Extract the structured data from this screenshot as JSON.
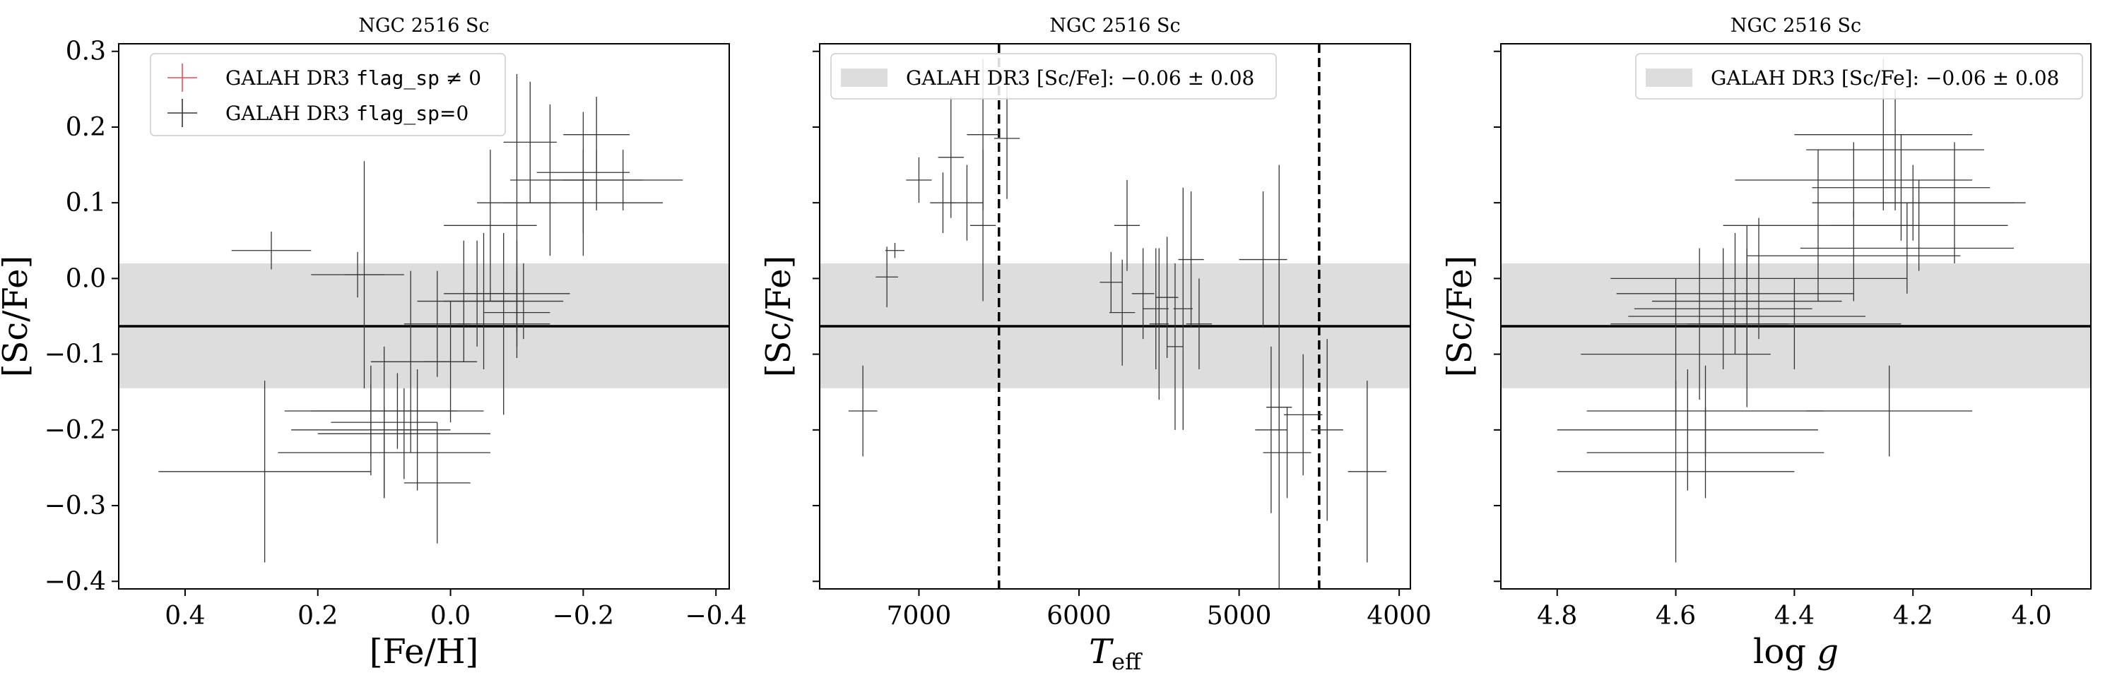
{
  "chart_data": [
    {
      "type": "scatter",
      "title": "NGC 2516 Sc",
      "xlabel": "[Fe/H]",
      "ylabel": "[Sc/Fe]",
      "xlim": [
        0.5,
        -0.42
      ],
      "ylim": [
        -0.41,
        0.31
      ],
      "xticks": [
        0.4,
        0.2,
        0.0,
        -0.2,
        -0.4
      ],
      "xtick_labels": [
        "0.4",
        "0.2",
        "0.0",
        "−0.2",
        "−0.4"
      ],
      "yticks": [
        0.3,
        0.2,
        0.1,
        0.0,
        -0.1,
        -0.2,
        -0.3,
        -0.4
      ],
      "ytick_labels": [
        "0.3",
        "0.2",
        "0.1",
        "0.0",
        "−0.1",
        "−0.2",
        "−0.3",
        "−0.4"
      ],
      "show_ytick_labels": true,
      "reference": {
        "value": -0.063,
        "band": [
          -0.145,
          0.02
        ]
      },
      "vlines": [],
      "legend": {
        "placement": "upper-left",
        "entries": [
          {
            "pre": "GALAH DR3 ",
            "code": "flag_sp",
            "post": " ≠ 0",
            "color": "#e0525e"
          },
          {
            "pre": "GALAH DR3 ",
            "code": "flag_sp",
            "post": "=0",
            "color": "#333333"
          }
        ]
      },
      "series": [
        {
          "name": "GALAH DR3 flag_sp=0",
          "color": "#333333",
          "points": [
            {
              "x": 0.27,
              "y": 0.037,
              "xerr": 0.06,
              "yerr": 0.025
            },
            {
              "x": 0.14,
              "y": 0.005,
              "xerr": 0.07,
              "yerr": 0.03
            },
            {
              "x": 0.13,
              "y": 0.005,
              "xerr": 0.03,
              "yerr": 0.15
            },
            {
              "x": 0.28,
              "y": -0.255,
              "xerr": 0.16,
              "yerr": 0.12
            },
            {
              "x": 0.12,
              "y": -0.2,
              "xerr": 0.12,
              "yerr": 0.06
            },
            {
              "x": 0.12,
              "y": -0.175,
              "xerr": 0.13,
              "yerr": 0.06
            },
            {
              "x": 0.08,
              "y": -0.175,
              "xerr": 0.13,
              "yerr": 0.05
            },
            {
              "x": 0.1,
              "y": -0.23,
              "xerr": 0.16,
              "yerr": 0.06
            },
            {
              "x": 0.07,
              "y": -0.205,
              "xerr": 0.13,
              "yerr": 0.06
            },
            {
              "x": 0.1,
              "y": -0.19,
              "xerr": 0.08,
              "yerr": 0.1
            },
            {
              "x": 0.06,
              "y": -0.11,
              "xerr": 0.06,
              "yerr": 0.12
            },
            {
              "x": 0.05,
              "y": -0.2,
              "xerr": 0.03,
              "yerr": 0.08
            },
            {
              "x": 0.02,
              "y": -0.06,
              "xerr": 0.05,
              "yerr": 0.07
            },
            {
              "x": 0.0,
              "y": -0.11,
              "xerr": 0.04,
              "yerr": 0.08
            },
            {
              "x": 0.02,
              "y": -0.27,
              "xerr": 0.05,
              "yerr": 0.08
            },
            {
              "x": -0.02,
              "y": -0.03,
              "xerr": 0.07,
              "yerr": 0.08
            },
            {
              "x": -0.04,
              "y": -0.02,
              "xerr": 0.05,
              "yerr": 0.07
            },
            {
              "x": -0.06,
              "y": 0.07,
              "xerr": 0.07,
              "yerr": 0.1
            },
            {
              "x": -0.05,
              "y": -0.03,
              "xerr": 0.06,
              "yerr": 0.09
            },
            {
              "x": -0.08,
              "y": -0.06,
              "xerr": 0.07,
              "yerr": 0.12
            },
            {
              "x": -0.1,
              "y": -0.045,
              "xerr": 0.05,
              "yerr": 0.06
            },
            {
              "x": -0.1,
              "y": -0.02,
              "xerr": 0.08,
              "yerr": 0.07
            },
            {
              "x": -0.11,
              "y": -0.03,
              "xerr": 0.06,
              "yerr": 0.05
            },
            {
              "x": -0.1,
              "y": 0.1,
              "xerr": 0.06,
              "yerr": 0.17
            },
            {
              "x": -0.12,
              "y": 0.18,
              "xerr": 0.04,
              "yerr": 0.08
            },
            {
              "x": -0.15,
              "y": 0.13,
              "xerr": 0.06,
              "yerr": 0.1
            },
            {
              "x": -0.2,
              "y": 0.14,
              "xerr": 0.07,
              "yerr": 0.08
            },
            {
              "x": -0.2,
              "y": 0.1,
              "xerr": 0.12,
              "yerr": 0.07
            },
            {
              "x": -0.22,
              "y": 0.19,
              "xerr": 0.05,
              "yerr": 0.05
            },
            {
              "x": -0.22,
              "y": 0.13,
              "xerr": 0.07,
              "yerr": 0.04
            },
            {
              "x": -0.26,
              "y": 0.13,
              "xerr": 0.09,
              "yerr": 0.04
            }
          ]
        }
      ]
    },
    {
      "type": "scatter",
      "title": "NGC 2516 Sc",
      "xlabel": "T_eff",
      "ylabel": "[Sc/Fe]",
      "xlim": [
        7620,
        3930
      ],
      "ylim": [
        -0.41,
        0.31
      ],
      "xticks": [
        7000,
        6000,
        5000,
        4000
      ],
      "xtick_labels": [
        "7000",
        "6000",
        "5000",
        "4000"
      ],
      "yticks": [
        0.3,
        0.2,
        0.1,
        0.0,
        -0.1,
        -0.2,
        -0.3,
        -0.4
      ],
      "ytick_labels": [
        "0.3",
        "0.2",
        "0.1",
        "0.0",
        "−0.1",
        "−0.2",
        "−0.3",
        "−0.4"
      ],
      "show_ytick_labels": false,
      "reference": {
        "value": -0.063,
        "band": [
          -0.145,
          0.02
        ]
      },
      "vlines": [
        6500,
        4500
      ],
      "legend": {
        "placement": "upper-left",
        "entries": [
          {
            "pre": "GALAH DR3 [Sc/Fe]: ",
            "math": "−0.06 ± 0.08",
            "color": "#dddddd"
          }
        ]
      },
      "series": [
        {
          "name": "GALAH DR3 flag_sp=0",
          "color": "#333333",
          "points": [
            {
              "x": 7350,
              "y": -0.175,
              "xerr": 90,
              "yerr": 0.06
            },
            {
              "x": 7200,
              "y": 0.002,
              "xerr": 70,
              "yerr": 0.04
            },
            {
              "x": 7150,
              "y": 0.037,
              "xerr": 60,
              "yerr": 0.01
            },
            {
              "x": 7000,
              "y": 0.13,
              "xerr": 80,
              "yerr": 0.03
            },
            {
              "x": 6850,
              "y": 0.1,
              "xerr": 80,
              "yerr": 0.04
            },
            {
              "x": 6800,
              "y": 0.16,
              "xerr": 80,
              "yerr": 0.08
            },
            {
              "x": 6700,
              "y": 0.1,
              "xerr": 100,
              "yerr": 0.05
            },
            {
              "x": 6600,
              "y": 0.07,
              "xerr": 80,
              "yerr": 0.1
            },
            {
              "x": 6600,
              "y": 0.19,
              "xerr": 100,
              "yerr": 0.1
            },
            {
              "x": 6450,
              "y": 0.185,
              "xerr": 80,
              "yerr": 0.08
            },
            {
              "x": 5800,
              "y": -0.005,
              "xerr": 70,
              "yerr": 0.04
            },
            {
              "x": 5730,
              "y": -0.045,
              "xerr": 80,
              "yerr": 0.07
            },
            {
              "x": 5700,
              "y": 0.07,
              "xerr": 80,
              "yerr": 0.06
            },
            {
              "x": 5600,
              "y": -0.02,
              "xerr": 70,
              "yerr": 0.06
            },
            {
              "x": 5520,
              "y": -0.04,
              "xerr": 80,
              "yerr": 0.08
            },
            {
              "x": 5500,
              "y": -0.06,
              "xerr": 60,
              "yerr": 0.1
            },
            {
              "x": 5450,
              "y": -0.025,
              "xerr": 70,
              "yerr": 0.08
            },
            {
              "x": 5400,
              "y": -0.09,
              "xerr": 50,
              "yerr": 0.11
            },
            {
              "x": 5350,
              "y": -0.04,
              "xerr": 60,
              "yerr": 0.16
            },
            {
              "x": 5300,
              "y": 0.025,
              "xerr": 80,
              "yerr": 0.09
            },
            {
              "x": 5250,
              "y": -0.06,
              "xerr": 80,
              "yerr": 0.06
            },
            {
              "x": 4850,
              "y": 0.025,
              "xerr": 150,
              "yerr": 0.09
            },
            {
              "x": 4800,
              "y": -0.2,
              "xerr": 100,
              "yerr": 0.11
            },
            {
              "x": 4750,
              "y": -0.17,
              "xerr": 80,
              "yerr": 0.32
            },
            {
              "x": 4700,
              "y": -0.23,
              "xerr": 150,
              "yerr": 0.06
            },
            {
              "x": 4600,
              "y": -0.18,
              "xerr": 120,
              "yerr": 0.08
            },
            {
              "x": 4450,
              "y": -0.2,
              "xerr": 100,
              "yerr": 0.12
            },
            {
              "x": 4200,
              "y": -0.255,
              "xerr": 120,
              "yerr": 0.12
            }
          ]
        }
      ]
    },
    {
      "type": "scatter",
      "title": "NGC 2516 Sc",
      "xlabel": "log g",
      "ylabel": "[Sc/Fe]",
      "xlim": [
        4.895,
        3.9
      ],
      "ylim": [
        -0.41,
        0.31
      ],
      "xticks": [
        4.8,
        4.6,
        4.4,
        4.2,
        4.0
      ],
      "xtick_labels": [
        "4.8",
        "4.6",
        "4.4",
        "4.2",
        "4.0"
      ],
      "yticks": [
        0.3,
        0.2,
        0.1,
        0.0,
        -0.1,
        -0.2,
        -0.3,
        -0.4
      ],
      "ytick_labels": [
        "0.3",
        "0.2",
        "0.1",
        "0.0",
        "−0.1",
        "−0.2",
        "−0.3",
        "−0.4"
      ],
      "show_ytick_labels": false,
      "reference": {
        "value": -0.063,
        "band": [
          -0.145,
          0.02
        ]
      },
      "vlines": [],
      "legend": {
        "placement": "upper-right",
        "entries": [
          {
            "pre": "GALAH DR3 [Sc/Fe]: ",
            "math": "−0.06 ± 0.08",
            "color": "#dddddd"
          }
        ]
      },
      "series": [
        {
          "name": "GALAH DR3 flag_sp=0",
          "color": "#333333",
          "points": [
            {
              "x": 4.6,
              "y": -0.255,
              "xerr": 0.2,
              "yerr": 0.12
            },
            {
              "x": 4.58,
              "y": -0.2,
              "xerr": 0.22,
              "yerr": 0.08
            },
            {
              "x": 4.55,
              "y": -0.23,
              "xerr": 0.2,
              "yerr": 0.06
            },
            {
              "x": 4.55,
              "y": -0.175,
              "xerr": 0.2,
              "yerr": 0.06
            },
            {
              "x": 4.24,
              "y": -0.175,
              "xerr": 0.14,
              "yerr": 0.06
            },
            {
              "x": 4.6,
              "y": -0.1,
              "xerr": 0.16,
              "yerr": 0.1
            },
            {
              "x": 4.56,
              "y": -0.06,
              "xerr": 0.15,
              "yerr": 0.1
            },
            {
              "x": 4.52,
              "y": -0.04,
              "xerr": 0.15,
              "yerr": 0.08
            },
            {
              "x": 4.5,
              "y": -0.02,
              "xerr": 0.2,
              "yerr": 0.08
            },
            {
              "x": 4.48,
              "y": -0.05,
              "xerr": 0.2,
              "yerr": 0.12
            },
            {
              "x": 4.48,
              "y": -0.03,
              "xerr": 0.16,
              "yerr": 0.07
            },
            {
              "x": 4.46,
              "y": 0.0,
              "xerr": 0.25,
              "yerr": 0.08
            },
            {
              "x": 4.4,
              "y": -0.06,
              "xerr": 0.18,
              "yerr": 0.06
            },
            {
              "x": 4.36,
              "y": 0.07,
              "xerr": 0.16,
              "yerr": 0.1
            },
            {
              "x": 4.3,
              "y": 0.03,
              "xerr": 0.18,
              "yerr": 0.06
            },
            {
              "x": 4.25,
              "y": 0.19,
              "xerr": 0.15,
              "yerr": 0.1
            },
            {
              "x": 4.23,
              "y": 0.17,
              "xerr": 0.15,
              "yerr": 0.08
            },
            {
              "x": 4.22,
              "y": 0.12,
              "xerr": 0.15,
              "yerr": 0.07
            },
            {
              "x": 4.21,
              "y": 0.04,
              "xerr": 0.18,
              "yerr": 0.06
            },
            {
              "x": 4.2,
              "y": 0.1,
              "xerr": 0.17,
              "yerr": 0.05
            },
            {
              "x": 4.19,
              "y": 0.07,
              "xerr": 0.15,
              "yerr": 0.06
            },
            {
              "x": 4.13,
              "y": 0.1,
              "xerr": 0.12,
              "yerr": 0.08
            },
            {
              "x": 4.3,
              "y": 0.13,
              "xerr": 0.2,
              "yerr": 0.05
            }
          ]
        }
      ]
    }
  ]
}
